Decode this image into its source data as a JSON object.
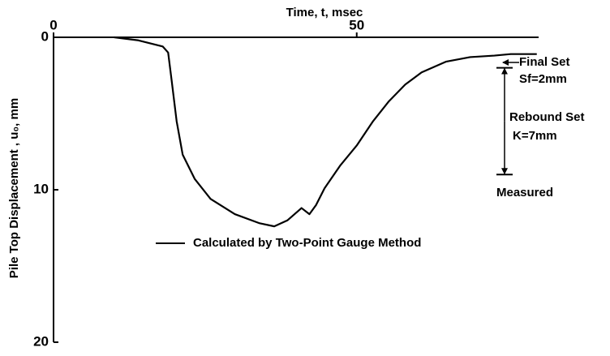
{
  "chart_data": {
    "type": "line",
    "x_label": "Time, t, msec",
    "y_label": "Pile Top Displacement , u₀, mm",
    "xlim": [
      0,
      80
    ],
    "xticks": [
      0,
      50
    ],
    "ylim": [
      0,
      20
    ],
    "yticks": [
      0,
      10,
      20
    ],
    "y_inverted": true,
    "x_axis_position": "top",
    "series": [
      {
        "name": "Calculated by Two-Point Gauge Method",
        "color": "#000000",
        "x": [
          10,
          14,
          18,
          18.9,
          19.5,
          20.3,
          21.3,
          23.3,
          25.9,
          29.9,
          34,
          36.4,
          38.6,
          40.9,
          42.2,
          43.3,
          44.7,
          47.3,
          50,
          52.7,
          55.3,
          58,
          60.7,
          64.7,
          68.7,
          72.7,
          75.4,
          79.7
        ],
        "values": [
          0,
          0.2,
          0.6,
          1.0,
          2.9,
          5.5,
          7.7,
          9.3,
          10.6,
          11.6,
          12.2,
          12.4,
          12.0,
          11.2,
          11.6,
          11.0,
          9.9,
          8.4,
          7.1,
          5.5,
          4.2,
          3.1,
          2.3,
          1.6,
          1.3,
          1.2,
          1.1,
          1.1
        ]
      }
    ],
    "measured": {
      "final_set": 2,
      "displacement": 9
    },
    "annotations": {
      "final_set": "Final Set",
      "final_set_value": "Sf=2mm",
      "rebound_set": "Rebound Set",
      "rebound_set_value": "K=7mm",
      "measured": "Measured"
    }
  }
}
